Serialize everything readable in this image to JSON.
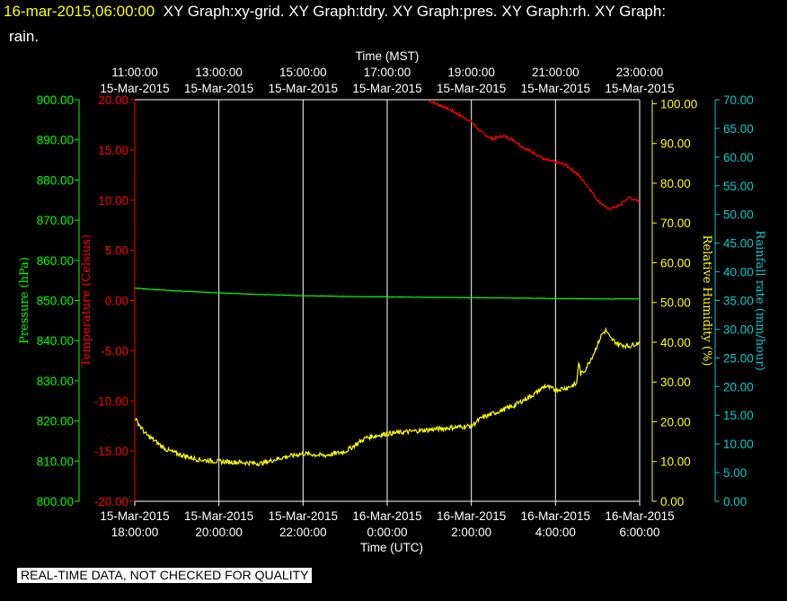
{
  "header": {
    "timestamp": "16-mar-2015,06:00:00",
    "graphs_line1": "XY Graph:xy-grid.  XY Graph:tdry.  XY Graph:pres.  XY Graph:rh.  XY Graph:",
    "graphs_line2": "rain."
  },
  "footer": {
    "notice": "REAL-TIME DATA, NOT CHECKED FOR QUALITY"
  },
  "colors": {
    "background": "#000000",
    "grid": "#ffffff",
    "pressure": "#00ff00",
    "temperature": "#ff0000",
    "humidity": "#ffff00",
    "rainfall": "#00cccc"
  },
  "chart_data": {
    "type": "line",
    "grid": true,
    "x_top_axis": {
      "label": "Time (MST)",
      "ticks": [
        {
          "time": "11:00:00",
          "date": "15-Mar-2015"
        },
        {
          "time": "13:00:00",
          "date": "15-Mar-2015"
        },
        {
          "time": "15:00:00",
          "date": "15-Mar-2015"
        },
        {
          "time": "17:00:00",
          "date": "15-Mar-2015"
        },
        {
          "time": "19:00:00",
          "date": "15-Mar-2015"
        },
        {
          "time": "21:00:00",
          "date": "15-Mar-2015"
        },
        {
          "time": "23:00:00",
          "date": "15-Mar-2015"
        }
      ]
    },
    "x_bottom_axis": {
      "label": "Time (UTC)",
      "range": [
        "15-Mar-2015 18:00:00",
        "16-Mar-2015 6:00:00"
      ],
      "ticks": [
        {
          "date": "15-Mar-2015",
          "time": "18:00:00"
        },
        {
          "date": "15-Mar-2015",
          "time": "20:00:00"
        },
        {
          "date": "15-Mar-2015",
          "time": "22:00:00"
        },
        {
          "date": "16-Mar-2015",
          "time": "0:00:00"
        },
        {
          "date": "16-Mar-2015",
          "time": "2:00:00"
        },
        {
          "date": "16-Mar-2015",
          "time": "4:00:00"
        },
        {
          "date": "16-Mar-2015",
          "time": "6:00:00"
        }
      ]
    },
    "y_axes": {
      "pressure": {
        "label": "Pressure (hPa)",
        "min": 800,
        "max": 900,
        "ticks": [
          "900.00",
          "890.00",
          "880.00",
          "870.00",
          "860.00",
          "850.00",
          "840.00",
          "830.00",
          "820.00",
          "810.00",
          "800.00"
        ]
      },
      "temperature": {
        "label": "Temperature (Celsius)",
        "min": -20,
        "max": 20,
        "ticks": [
          "20.00",
          "15.00",
          "10.00",
          "5.00",
          "0.00",
          "-5.00",
          "-10.00",
          "-15.00",
          "-20.00"
        ]
      },
      "humidity": {
        "label": "Relative Humidity (%)",
        "min": 0,
        "max": 101,
        "ticks": [
          "100.00",
          "90.00",
          "80.00",
          "70.00",
          "60.00",
          "50.00",
          "40.00",
          "30.00",
          "20.00",
          "10.00",
          "0.00"
        ]
      },
      "rainfall": {
        "label": "Rainfall rate (mm/hour)",
        "min": 0,
        "max": 70,
        "ticks": [
          "70.00",
          "65.00",
          "60.00",
          "55.00",
          "50.00",
          "45.00",
          "40.00",
          "35.00",
          "30.00",
          "25.00",
          "20.00",
          "15.00",
          "10.00",
          "5.00",
          "0.00"
        ]
      }
    },
    "series": [
      {
        "key": "temperature",
        "hours": [
          7.0,
          7.5,
          8.0,
          8.25,
          8.5,
          8.75,
          9.0,
          9.25,
          9.5,
          9.75,
          10.0,
          10.25,
          10.5,
          10.75,
          11.0,
          11.25,
          11.5,
          11.75,
          12.0
        ],
        "values": [
          19.9,
          19.0,
          17.8,
          16.7,
          16.1,
          16.4,
          16.0,
          15.2,
          14.7,
          14.0,
          13.8,
          13.5,
          12.7,
          11.5,
          10.0,
          9.1,
          9.4,
          10.3,
          9.8
        ]
      },
      {
        "key": "pressure",
        "hours": [
          0,
          0.5,
          1,
          2,
          3,
          4,
          5,
          6,
          7,
          8,
          9,
          10,
          11,
          12
        ],
        "values": [
          853.1,
          852.7,
          852.4,
          851.9,
          851.5,
          851.2,
          851.0,
          850.9,
          850.8,
          850.7,
          850.6,
          850.5,
          850.4,
          850.4
        ]
      },
      {
        "key": "humidity",
        "hours": [
          0,
          0.25,
          0.5,
          0.75,
          1,
          1.5,
          2,
          2.5,
          3,
          3.5,
          4,
          4.5,
          5,
          5.5,
          6,
          6.5,
          7,
          7.5,
          8,
          8.25,
          8.5,
          9,
          9.5,
          9.75,
          10,
          10.25,
          10.5,
          10.55,
          10.6,
          10.7,
          10.9,
          11.1,
          11.2,
          11.3,
          11.5,
          11.75,
          12
        ],
        "values": [
          21,
          17,
          15,
          13,
          12,
          10.5,
          10,
          9.8,
          9.5,
          11,
          12,
          11.5,
          12.5,
          16,
          17,
          17.5,
          18,
          18.5,
          19,
          21,
          22,
          24,
          27,
          29,
          28,
          28.5,
          29.5,
          35,
          32,
          33,
          37,
          42,
          43,
          41,
          39.5,
          39,
          40
        ]
      }
    ]
  }
}
